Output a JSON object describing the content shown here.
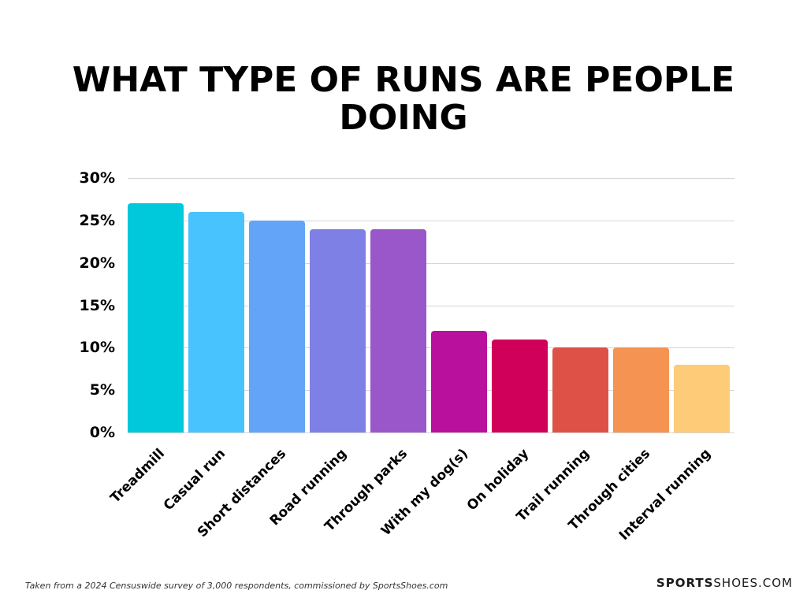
{
  "title": "WHAT TYPE OF RUNS ARE PEOPLE DOING",
  "title_line1": "WHAT TYPE OF RUNS ARE PEOPLE",
  "title_line2": "DOING",
  "footnote": "Taken from a 2024 Censuswide survey of 3,000 respondents, commissioned by SportsShoes.com",
  "brand": {
    "bold": "SPORTS",
    "light": "SHOES.COM"
  },
  "chart_data": {
    "type": "bar",
    "title": "WHAT TYPE OF RUNS ARE PEOPLE DOING",
    "xlabel": "",
    "ylabel": "",
    "ylim": [
      0,
      30
    ],
    "yticks": [
      "0%",
      "5%",
      "10%",
      "15%",
      "20%",
      "25%",
      "30%"
    ],
    "grid": true,
    "legend": null,
    "categories": [
      "Treadmill",
      "Casual run",
      "Short distances",
      "Road running",
      "Through parks",
      "With my dog(s)",
      "On holiday",
      "Trail running",
      "Through cities",
      "Interval running"
    ],
    "values": [
      27,
      26,
      25,
      24,
      24,
      12,
      11,
      10,
      10,
      8
    ],
    "colors": [
      "#00c9dc",
      "#48c3fd",
      "#64a4f8",
      "#7f80e5",
      "#9957ca",
      "#b9119e",
      "#d0005a",
      "#de5146",
      "#f59352",
      "#fecb79"
    ]
  }
}
